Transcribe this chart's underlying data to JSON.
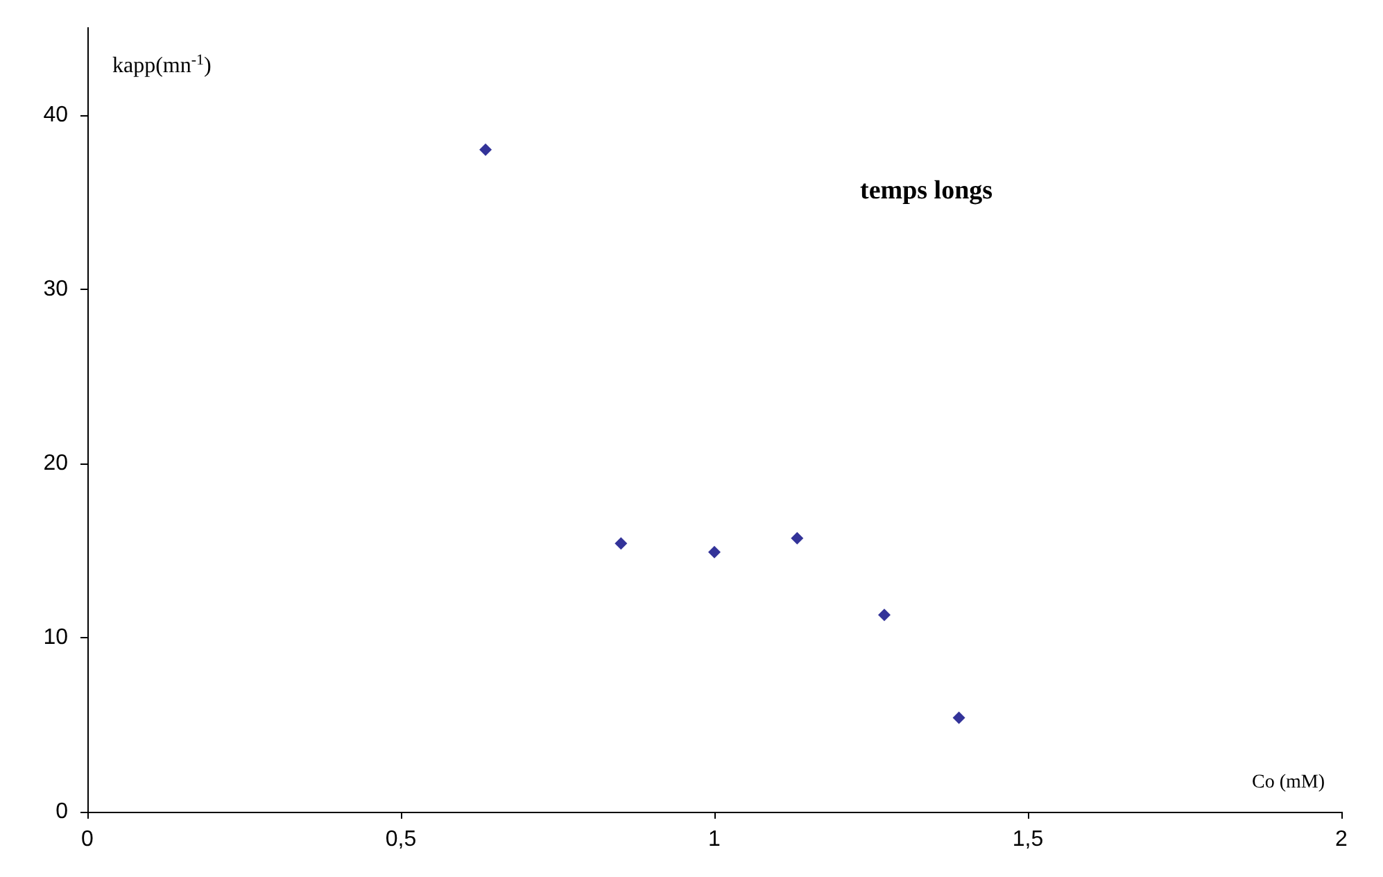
{
  "chart_data": {
    "type": "scatter",
    "xlabel": "Co (mM)",
    "ylabel": "kapp(mn$^{-1}$)",
    "annotations": [
      "temps longs"
    ],
    "x": [
      0.635,
      0.851,
      1.0,
      1.132,
      1.271,
      1.39
    ],
    "series": [
      {
        "color": "#000080",
        "values": [
          38.0,
          15.4,
          14.9,
          15.7,
          11.3,
          5.4
        ]
      }
    ],
    "xlim": [
      0,
      2
    ],
    "xticks": [
      0,
      {
        "value": 0.5,
        "label": "0,5"
      },
      1,
      {
        "value": 1.5,
        "label": "1,5"
      },
      2
    ],
    "ylim": [
      0,
      45
    ],
    "yticks": [
      0,
      10,
      20,
      30,
      40
    ],
    "grid": false,
    "marker": "diamond"
  }
}
